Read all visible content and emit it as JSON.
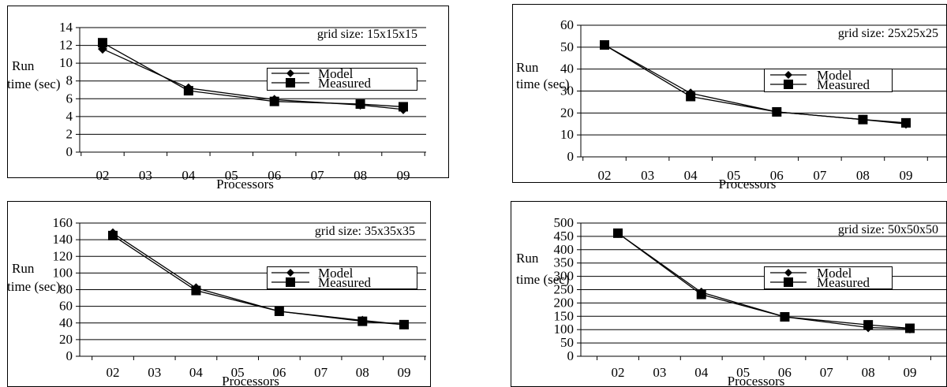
{
  "chart_data": [
    {
      "type": "line",
      "subtitle": "grid size: 15x15x15",
      "ylabel_line1": "Run",
      "ylabel_line2": "time (sec)",
      "xlabel": "Processors",
      "categories": [
        "02",
        "03",
        "04",
        "05",
        "06",
        "07",
        "08",
        "09"
      ],
      "yticks": [
        "0",
        "2",
        "4",
        "6",
        "8",
        "10",
        "12",
        "14"
      ],
      "ylim": [
        0,
        14
      ],
      "grid": true,
      "legend_position": "center-right",
      "series": [
        {
          "name": "Model",
          "marker": "diamond",
          "points": [
            {
              "x": "02",
              "y": 11.6
            },
            {
              "x": "04",
              "y": 7.2
            },
            {
              "x": "06",
              "y": 5.9
            },
            {
              "x": "08",
              "y": 5.3
            },
            {
              "x": "09",
              "y": 4.8
            }
          ]
        },
        {
          "name": "Measured",
          "marker": "square",
          "points": [
            {
              "x": "02",
              "y": 12.3
            },
            {
              "x": "04",
              "y": 6.9
            },
            {
              "x": "06",
              "y": 5.7
            },
            {
              "x": "08",
              "y": 5.4
            },
            {
              "x": "09",
              "y": 5.1
            }
          ]
        }
      ]
    },
    {
      "type": "line",
      "subtitle": "grid size: 25x25x25",
      "ylabel_line1": "Run",
      "ylabel_line2": "time (sec)",
      "xlabel": "Processors",
      "categories": [
        "02",
        "03",
        "04",
        "05",
        "06",
        "07",
        "08",
        "09"
      ],
      "yticks": [
        "0",
        "10",
        "20",
        "30",
        "40",
        "50",
        "60"
      ],
      "ylim": [
        0,
        60
      ],
      "grid": true,
      "legend_position": "center-right",
      "series": [
        {
          "name": "Model",
          "marker": "diamond",
          "points": [
            {
              "x": "02",
              "y": 51
            },
            {
              "x": "04",
              "y": 29
            },
            {
              "x": "06",
              "y": 20.5
            },
            {
              "x": "08",
              "y": 17
            },
            {
              "x": "09",
              "y": 15
            }
          ]
        },
        {
          "name": "Measured",
          "marker": "square",
          "points": [
            {
              "x": "02",
              "y": 51
            },
            {
              "x": "04",
              "y": 27.5
            },
            {
              "x": "06",
              "y": 20.5
            },
            {
              "x": "08",
              "y": 17
            },
            {
              "x": "09",
              "y": 15.5
            }
          ]
        }
      ]
    },
    {
      "type": "line",
      "subtitle": "grid size: 35x35x35",
      "ylabel_line1": "Run",
      "ylabel_line2": "time (sec)",
      "xlabel": "Processors",
      "categories": [
        "02",
        "03",
        "04",
        "05",
        "06",
        "07",
        "08",
        "09"
      ],
      "yticks": [
        "0",
        "20",
        "40",
        "60",
        "80",
        "100",
        "120",
        "140",
        "160"
      ],
      "ylim": [
        0,
        160
      ],
      "grid": true,
      "legend_position": "center-right",
      "series": [
        {
          "name": "Model",
          "marker": "diamond",
          "points": [
            {
              "x": "02",
              "y": 148
            },
            {
              "x": "04",
              "y": 82
            },
            {
              "x": "06",
              "y": 54
            },
            {
              "x": "08",
              "y": 43
            },
            {
              "x": "09",
              "y": 38
            }
          ]
        },
        {
          "name": "Measured",
          "marker": "square",
          "points": [
            {
              "x": "02",
              "y": 145
            },
            {
              "x": "04",
              "y": 79
            },
            {
              "x": "06",
              "y": 54
            },
            {
              "x": "08",
              "y": 42
            },
            {
              "x": "09",
              "y": 38
            }
          ]
        }
      ]
    },
    {
      "type": "line",
      "subtitle": "grid size: 50x50x50",
      "ylabel_line1": "Run",
      "ylabel_line2": "time (sec)",
      "xlabel": "Processors",
      "categories": [
        "02",
        "03",
        "04",
        "05",
        "06",
        "07",
        "08",
        "09"
      ],
      "yticks": [
        "0",
        "50",
        "100",
        "150",
        "200",
        "250",
        "300",
        "350",
        "400",
        "450",
        "500"
      ],
      "ylim": [
        0,
        500
      ],
      "grid": true,
      "legend_position": "center-right",
      "series": [
        {
          "name": "Model",
          "marker": "diamond",
          "points": [
            {
              "x": "02",
              "y": 462
            },
            {
              "x": "04",
              "y": 240
            },
            {
              "x": "06",
              "y": 148
            },
            {
              "x": "08",
              "y": 108
            },
            {
              "x": "09",
              "y": 103
            }
          ]
        },
        {
          "name": "Measured",
          "marker": "square",
          "points": [
            {
              "x": "02",
              "y": 462
            },
            {
              "x": "04",
              "y": 232
            },
            {
              "x": "06",
              "y": 148
            },
            {
              "x": "08",
              "y": 118
            },
            {
              "x": "09",
              "y": 105
            }
          ]
        }
      ]
    }
  ]
}
